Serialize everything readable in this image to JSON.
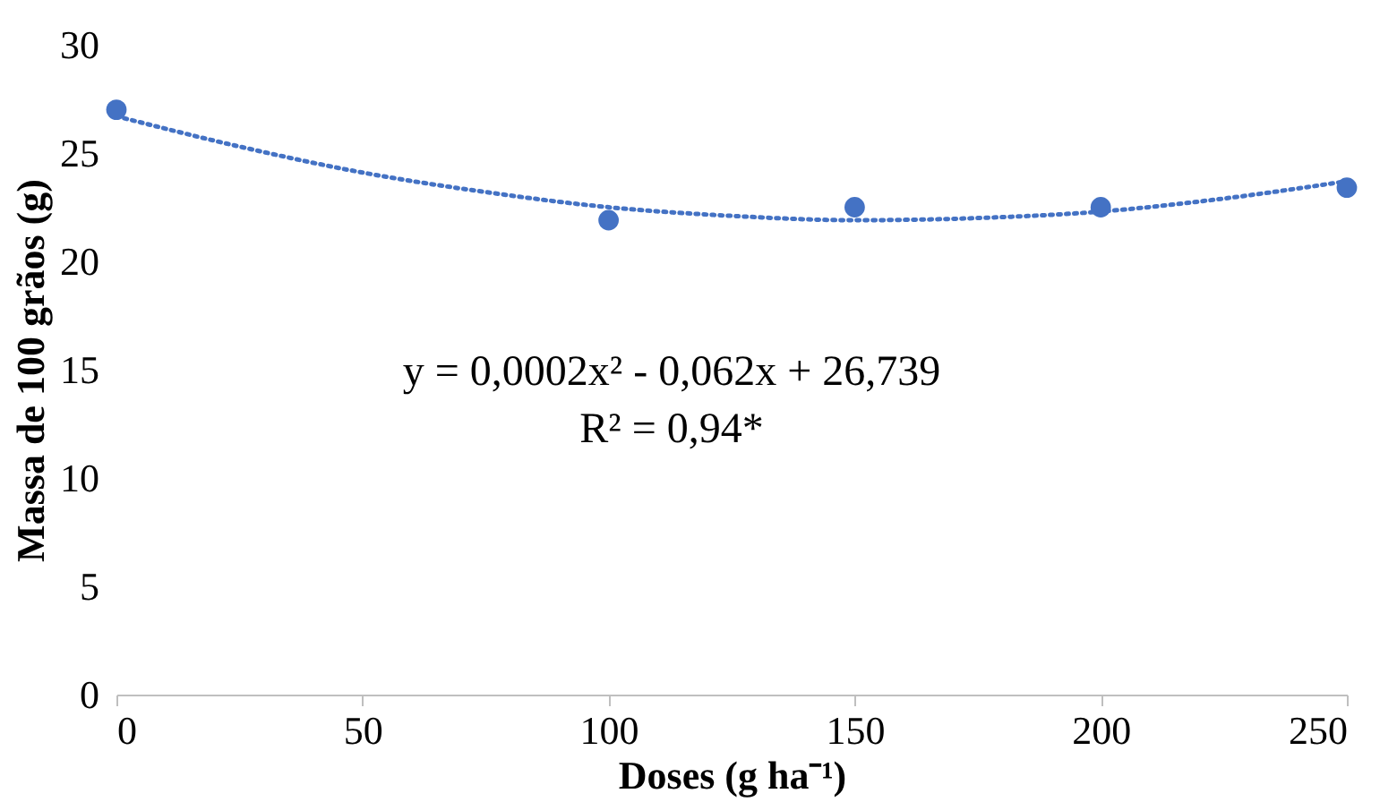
{
  "chart_data": {
    "type": "scatter",
    "xlabel": "Doses (g ha⁻¹)",
    "ylabel": "Massa de 100 grãos (g)",
    "xlim": [
      0,
      250
    ],
    "xticks": [
      0,
      50,
      100,
      150,
      200,
      250
    ],
    "ylim": [
      0,
      30
    ],
    "yticks": [
      0,
      5,
      10,
      15,
      20,
      25,
      30
    ],
    "grid": false,
    "annotations": [
      "y = 0,0002x² - 0,062x + 26,739",
      "R² = 0,94*"
    ],
    "series": [
      {
        "color": "#4472c4",
        "marker": "circle",
        "x": [
          0,
          100,
          150,
          200,
          250
        ],
        "values": [
          27,
          21.9,
          22.5,
          22.5,
          23.4
        ]
      },
      {
        "type": "line",
        "color": "#4472c4",
        "marker": "none",
        "line_style": "dotted",
        "x": [
          0,
          25,
          50,
          75,
          100,
          125,
          150,
          175,
          200,
          225,
          250
        ],
        "values": [
          26.7,
          25.3,
          24.1,
          23.2,
          22.5,
          22.1,
          21.9,
          22.0,
          22.3,
          22.9,
          23.7
        ]
      }
    ]
  }
}
